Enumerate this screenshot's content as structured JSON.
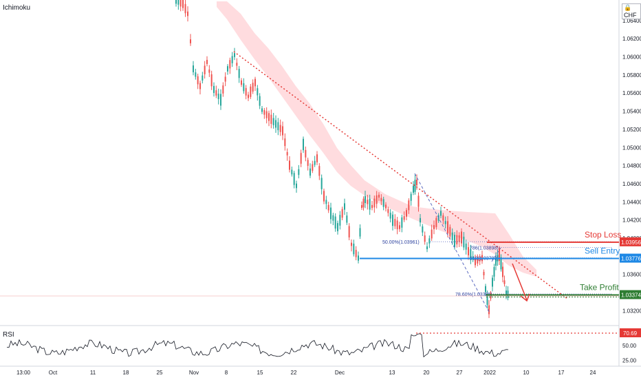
{
  "chart_data": {
    "type": "line",
    "indicator_label": "Ichimoku",
    "rsi_label": "RSI",
    "currency": "CHF",
    "currency_icon": "lock-icon",
    "y_ticks": [
      "1.06400",
      "1.06200",
      "1.06000",
      "1.05800",
      "1.05600",
      "1.05400",
      "1.05200",
      "1.05000",
      "1.04800",
      "1.04600",
      "1.04400",
      "1.04200",
      "1.04000",
      "1.03600",
      "1.03400",
      "1.03200"
    ],
    "y_tick_values": [
      1.064,
      1.062,
      1.06,
      1.058,
      1.056,
      1.054,
      1.052,
      1.05,
      1.048,
      1.046,
      1.044,
      1.042,
      1.04,
      1.036,
      1.034,
      1.032
    ],
    "ylim": [
      1.0312,
      1.0655
    ],
    "x_ticks": [
      "13:00",
      "Oct",
      "11",
      "18",
      "25",
      "Nov",
      "8",
      "15",
      "22",
      "Dec",
      "13",
      "20",
      "27",
      "2022",
      "10",
      "17",
      "24"
    ],
    "rsi_ticks": [
      "50.00",
      "25.00"
    ],
    "rsi_tick_values": [
      50,
      25
    ],
    "rsi_ylim": [
      15,
      80
    ],
    "levels": [
      {
        "name": "Stop Loss",
        "value": 1.03956,
        "label": "1.03956",
        "color": "#e53935"
      },
      {
        "name": "Sell Entry",
        "value": 1.03776,
        "label": "1.03776",
        "color": "#1e88e5"
      },
      {
        "name": "Take Profit",
        "value": 1.03374,
        "label": "1.03374",
        "color": "#2e7d32"
      }
    ],
    "rsi_level": {
      "value": 70.69,
      "label": "70.69",
      "color": "#e53935"
    },
    "fib_labels": [
      {
        "text": "50.00%(1.03961)",
        "value": 1.03961
      },
      {
        "text": "786(1.03898)",
        "value": 1.03898
      },
      {
        "text": "618(1.03783)",
        "value": 1.03783
      },
      {
        "text": "78.60%(1.03385)",
        "value": 1.03385
      }
    ],
    "colors": {
      "up": "#26a69a",
      "down": "#ef5350",
      "cloud": "#ffcdd2",
      "trend": "#e53935",
      "fib": "#5c6bc0",
      "rsi": "#131722"
    }
  }
}
